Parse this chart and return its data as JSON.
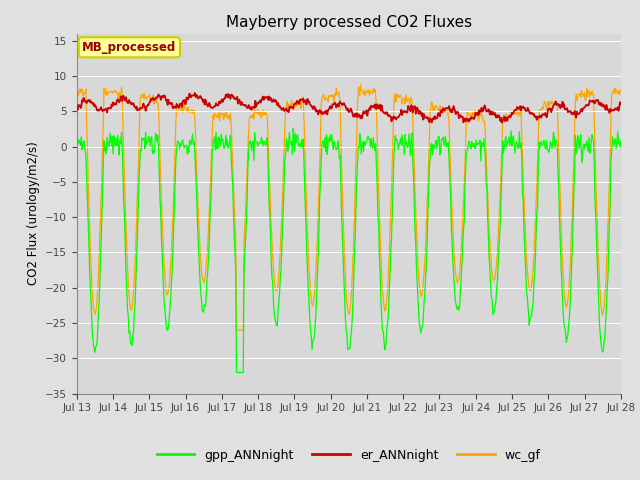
{
  "title": "Mayberry processed CO2 Fluxes",
  "ylabel": "CO2 Flux (urology/m2/s)",
  "bg_color": "#e0e0e0",
  "plot_bg_color": "#d8d8d8",
  "gpp_color": "#00ff00",
  "er_color": "#cc0000",
  "wc_color": "#ffa500",
  "ylim": [
    -35,
    16
  ],
  "yticks": [
    -35,
    -30,
    -25,
    -20,
    -15,
    -10,
    -5,
    0,
    5,
    10,
    15
  ],
  "annotation_text": "MB_processed",
  "annotation_color": "#990000",
  "annotation_bg": "#ffff99",
  "annotation_edge": "#cccc00",
  "n_days": 15,
  "points_per_day": 48
}
